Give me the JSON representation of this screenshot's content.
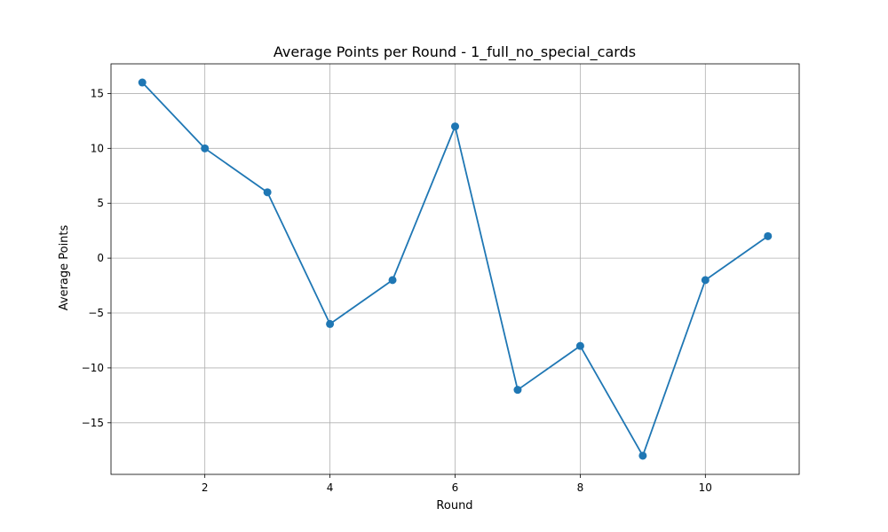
{
  "chart_data": {
    "type": "line",
    "title": "Average Points per Round - 1_full_no_special_cards",
    "xlabel": "Round",
    "ylabel": "Average Points",
    "x": [
      1,
      2,
      3,
      4,
      5,
      6,
      7,
      8,
      9,
      10,
      11
    ],
    "series": [
      {
        "values": [
          16,
          10,
          6,
          -6,
          -2,
          12,
          -12,
          -8,
          -18,
          -2,
          2
        ],
        "color": "#1f77b4",
        "marker": "circle"
      }
    ],
    "xlim": [
      0.5,
      11.5
    ],
    "ylim": [
      -19.7,
      17.7
    ],
    "xticks": [
      2,
      4,
      6,
      8,
      10
    ],
    "xtick_labels": [
      "2",
      "4",
      "6",
      "8",
      "10"
    ],
    "yticks": [
      15,
      10,
      5,
      0,
      -5,
      -10,
      -15
    ],
    "ytick_labels": [
      "15",
      "10",
      "5",
      "0",
      "−5",
      "−10",
      "−15"
    ],
    "grid": true
  }
}
